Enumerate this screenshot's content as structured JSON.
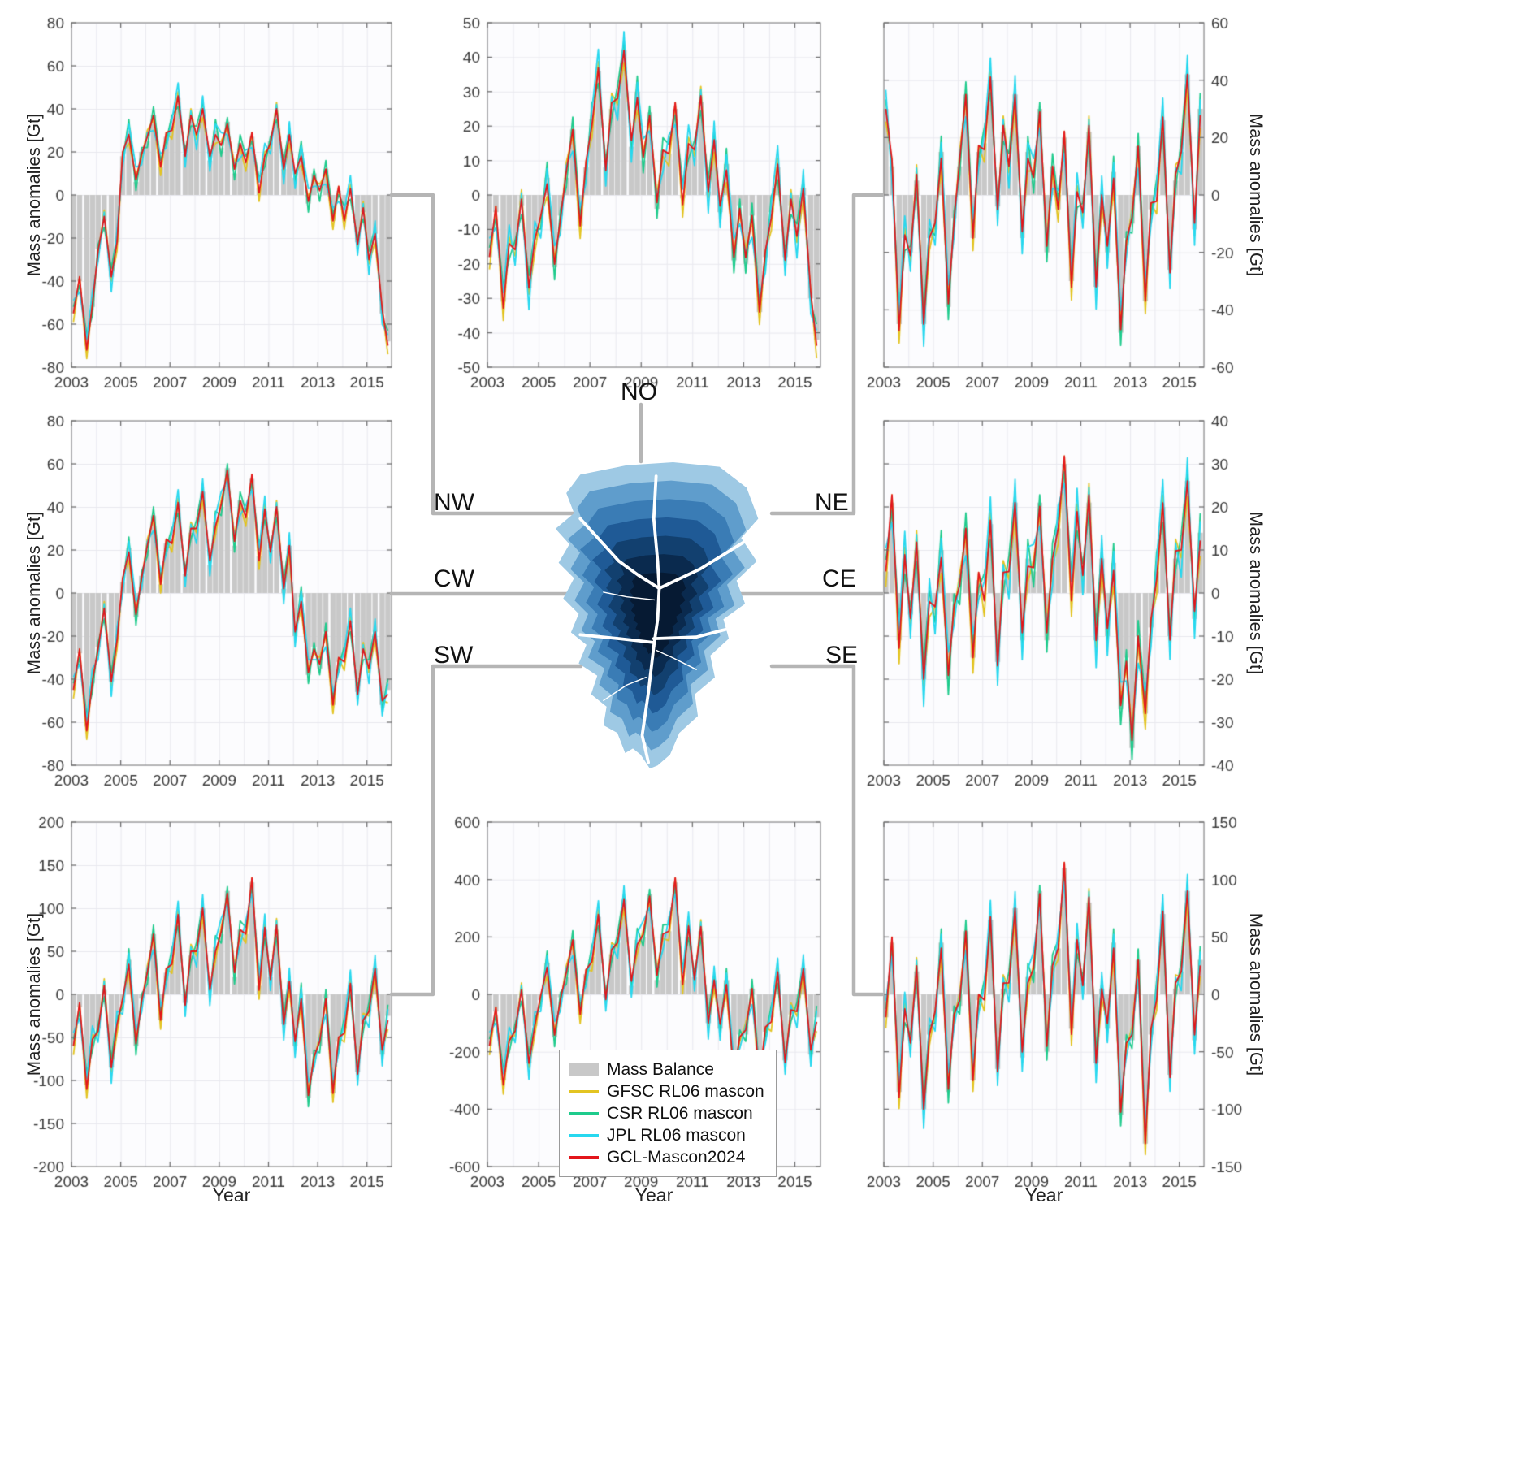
{
  "axis_titles": {
    "y": "Mass anomalies [Gt]",
    "x": "Year"
  },
  "region_labels": {
    "no": "NO",
    "nw": "NW",
    "ne": "NE",
    "cw": "CW",
    "ce": "CE",
    "sw": "SW",
    "se": "SE"
  },
  "colors": {
    "mass_balance": "#c8c8c8",
    "gfsc": "#e3c422",
    "csr": "#1ecb8c",
    "jpl": "#27d8ef",
    "gcl": "#e3151b",
    "connector": "#b5b5b5",
    "grid": "#e9e9ef",
    "frame": "#8a8a8a",
    "tick_text": "#3a3a3a",
    "plot_bg": "#fcfcfe"
  },
  "legend": {
    "items": [
      {
        "label": "Mass Balance",
        "type": "patch",
        "color": "#c8c8c8"
      },
      {
        "label": "GFSC RL06 mascon",
        "type": "line",
        "color": "#e3c422"
      },
      {
        "label": "CSR RL06 mascon",
        "type": "line",
        "color": "#1ecb8c"
      },
      {
        "label": "JPL RL06 mascon",
        "type": "line",
        "color": "#27d8ef"
      },
      {
        "label": "GCL-Mascon2024",
        "type": "line",
        "color": "#e3151b"
      }
    ]
  },
  "chart_data": {
    "type": "line+bar multi-panel time series",
    "x_unit": "decimal year",
    "y_unit": "Gt (mass anomalies)",
    "x_range": [
      2003,
      2016
    ],
    "xticks": [
      2003,
      2005,
      2007,
      2009,
      2011,
      2013,
      2015
    ],
    "x": [
      2003.08,
      2003.33,
      2003.62,
      2003.85,
      2004.08,
      2004.33,
      2004.62,
      2004.85,
      2005.08,
      2005.33,
      2005.62,
      2005.85,
      2006.08,
      2006.33,
      2006.62,
      2006.85,
      2007.08,
      2007.33,
      2007.62,
      2007.85,
      2008.08,
      2008.33,
      2008.62,
      2008.85,
      2009.08,
      2009.33,
      2009.62,
      2009.85,
      2010.08,
      2010.33,
      2010.62,
      2010.85,
      2011.08,
      2011.33,
      2011.62,
      2011.85,
      2012.08,
      2012.33,
      2012.62,
      2012.85,
      2013.08,
      2013.33,
      2013.62,
      2013.85,
      2014.08,
      2014.33,
      2014.62,
      2014.85,
      2015.08,
      2015.33,
      2015.62,
      2015.85
    ],
    "series_defs": [
      {
        "name": "GFSC RL06 mascon",
        "key": "gfsc",
        "offsets": [
          -4,
          2,
          -6,
          3,
          -3,
          5,
          -2
        ]
      },
      {
        "name": "CSR RL06 mascon",
        "key": "csr",
        "offsets": [
          3,
          -2,
          5,
          -4,
          2,
          -3,
          4
        ]
      },
      {
        "name": "JPL RL06 mascon",
        "key": "jpl",
        "offsets": [
          6,
          -5,
          3,
          7,
          -6,
          4,
          -7
        ]
      },
      {
        "name": "GCL-Mascon2024",
        "key": "gcl",
        "offsets": [
          0,
          2,
          -2,
          1,
          -1,
          2,
          0
        ]
      }
    ],
    "panels": [
      {
        "id": "NW",
        "region": "NW",
        "position": "top-left",
        "ylim": [
          -80,
          80
        ],
        "ytick_step": 20,
        "y_axis_side": "left",
        "offset_scale": 1,
        "mass_balance": [
          -55,
          -40,
          -70,
          -52,
          -25,
          -12,
          -38,
          -22,
          18,
          30,
          6,
          20,
          25,
          37,
          13,
          27,
          32,
          45,
          19,
          35,
          28,
          40,
          16,
          30,
          22,
          34,
          10,
          24,
          15,
          27,
          3,
          17,
          25,
          38,
          12,
          28,
          8,
          20,
          -4,
          10,
          0,
          12,
          -12,
          2,
          -10,
          2,
          -22,
          -8,
          -30,
          -18,
          -55,
          -68
        ]
      },
      {
        "id": "NO",
        "region": "NO",
        "position": "top-middle",
        "ylim": [
          -50,
          50
        ],
        "ytick_step": 10,
        "y_axis_side": "left",
        "offset_scale": 0.9,
        "mass_balance": [
          -18,
          -5,
          -31,
          -15,
          -15,
          -3,
          -27,
          -13,
          -8,
          5,
          -21,
          -6,
          5,
          19,
          -9,
          8,
          22,
          36,
          8,
          25,
          28,
          42,
          14,
          30,
          10,
          24,
          -4,
          13,
          12,
          25,
          -1,
          14,
          14,
          27,
          1,
          16,
          -5,
          9,
          -19,
          -3,
          -20,
          -6,
          -34,
          -18,
          -5,
          8,
          -18,
          -3,
          -12,
          2,
          -30,
          -42
        ]
      },
      {
        "id": "NE",
        "region": "NE",
        "position": "top-right",
        "ylim": [
          -60,
          60
        ],
        "ytick_step": 20,
        "y_axis_side": "right",
        "offset_scale": 1.1,
        "mass_balance": [
          30,
          10,
          -45,
          -15,
          -20,
          5,
          -45,
          -15,
          -12,
          15,
          -39,
          -8,
          10,
          35,
          -15,
          15,
          18,
          40,
          -4,
          22,
          10,
          35,
          -15,
          15,
          5,
          30,
          -20,
          10,
          -5,
          20,
          -30,
          0,
          -5,
          22,
          -32,
          0,
          -20,
          8,
          -48,
          -15,
          -10,
          17,
          -37,
          -5,
          0,
          26,
          -26,
          5,
          15,
          42,
          -12,
          30
        ]
      },
      {
        "id": "CW",
        "region": "CW",
        "position": "middle-left",
        "ylim": [
          -80,
          80
        ],
        "ytick_step": 20,
        "y_axis_side": "left",
        "offset_scale": 1,
        "mass_balance": [
          -45,
          -28,
          -62,
          -42,
          -25,
          -9,
          -41,
          -22,
          5,
          21,
          -11,
          8,
          20,
          36,
          4,
          23,
          25,
          41,
          9,
          28,
          30,
          47,
          13,
          33,
          40,
          58,
          22,
          43,
          35,
          53,
          17,
          38,
          20,
          38,
          2,
          22,
          -20,
          -2,
          -38,
          -25,
          -35,
          -18,
          -52,
          -32,
          -30,
          -14,
          -46,
          -28,
          -35,
          -18,
          -52,
          -45
        ]
      },
      {
        "id": "CE",
        "region": "CE",
        "position": "middle-right",
        "ylim": [
          -40,
          40
        ],
        "ytick_step": 10,
        "y_axis_side": "right",
        "offset_scale": 0.9,
        "mass_balance": [
          5,
          21,
          -11,
          8,
          -5,
          10,
          -20,
          -2,
          -5,
          10,
          -20,
          -2,
          0,
          15,
          -15,
          3,
          0,
          16,
          -16,
          3,
          5,
          21,
          -11,
          8,
          5,
          21,
          -11,
          8,
          15,
          30,
          0,
          18,
          5,
          21,
          -11,
          8,
          -10,
          7,
          -27,
          -15,
          -36,
          -10,
          -28,
          -8,
          5,
          20,
          -10,
          8,
          10,
          26,
          -6,
          14
        ]
      },
      {
        "id": "SW",
        "region": "SW",
        "position": "bottom-left",
        "ylim": [
          -200,
          200
        ],
        "ytick_step": 50,
        "y_axis_side": "left",
        "offset_scale": 2.6,
        "mass_balance": [
          -60,
          -15,
          -105,
          -55,
          -40,
          5,
          -85,
          -35,
          -10,
          40,
          -60,
          -5,
          20,
          70,
          -30,
          25,
          40,
          90,
          -10,
          45,
          50,
          100,
          0,
          55,
          70,
          120,
          20,
          75,
          70,
          130,
          10,
          75,
          20,
          75,
          -35,
          15,
          -60,
          0,
          -120,
          -70,
          -60,
          -5,
          -115,
          -55,
          -40,
          10,
          -90,
          -35,
          -20,
          30,
          -70,
          -25
        ]
      },
      {
        "id": "TOTAL",
        "region": "",
        "position": "bottom-middle",
        "ylim": [
          -600,
          600
        ],
        "ytick_step": 200,
        "y_axis_side": "left",
        "offset_scale": 8,
        "mass_balance": [
          -180,
          -60,
          -300,
          -170,
          -120,
          0,
          -240,
          -110,
          -20,
          110,
          -150,
          -10,
          60,
          190,
          -70,
          70,
          130,
          270,
          -10,
          140,
          180,
          330,
          30,
          190,
          200,
          350,
          50,
          210,
          220,
          390,
          50,
          230,
          60,
          220,
          -100,
          50,
          -120,
          50,
          -290,
          -140,
          -140,
          20,
          -300,
          -130,
          -80,
          70,
          -230,
          -70,
          -60,
          90,
          -210,
          -80
        ]
      },
      {
        "id": "SE",
        "region": "SE",
        "position": "bottom-right",
        "ylim": [
          -150,
          150
        ],
        "ytick_step": 50,
        "y_axis_side": "right",
        "offset_scale": 2.4,
        "mass_balance": [
          -20,
          45,
          -85,
          -15,
          -40,
          20,
          -100,
          -35,
          -20,
          45,
          -85,
          -15,
          -10,
          55,
          -75,
          -5,
          0,
          65,
          -65,
          5,
          10,
          75,
          -55,
          15,
          20,
          90,
          -50,
          25,
          40,
          110,
          -30,
          45,
          10,
          80,
          -60,
          5,
          -30,
          45,
          -105,
          -40,
          -40,
          30,
          -130,
          -35,
          0,
          70,
          -70,
          5,
          20,
          90,
          -40,
          30
        ]
      }
    ]
  }
}
